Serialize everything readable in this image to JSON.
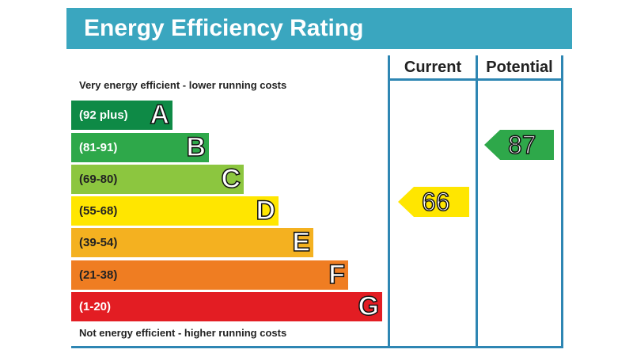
{
  "title": "Energy Efficiency Rating",
  "top_note": "Very energy efficient - lower running costs",
  "bottom_note": "Not energy efficient - higher running costs",
  "columns": {
    "current": "Current",
    "potential": "Potential"
  },
  "chart_data": {
    "type": "bar",
    "categories": [
      "A",
      "B",
      "C",
      "D",
      "E",
      "F",
      "G"
    ],
    "ranges": [
      "(92 plus)",
      "(81-91)",
      "(69-80)",
      "(55-68)",
      "(39-54)",
      "(21-38)",
      "(1-20)"
    ],
    "colors": [
      "#0e8a46",
      "#2ea84a",
      "#8cc63f",
      "#ffe600",
      "#f4b120",
      "#ef7d22",
      "#e31d23"
    ],
    "current": {
      "value": "66",
      "color": "#ffe600"
    },
    "potential": {
      "value": "87",
      "color": "#2ea84a"
    }
  }
}
